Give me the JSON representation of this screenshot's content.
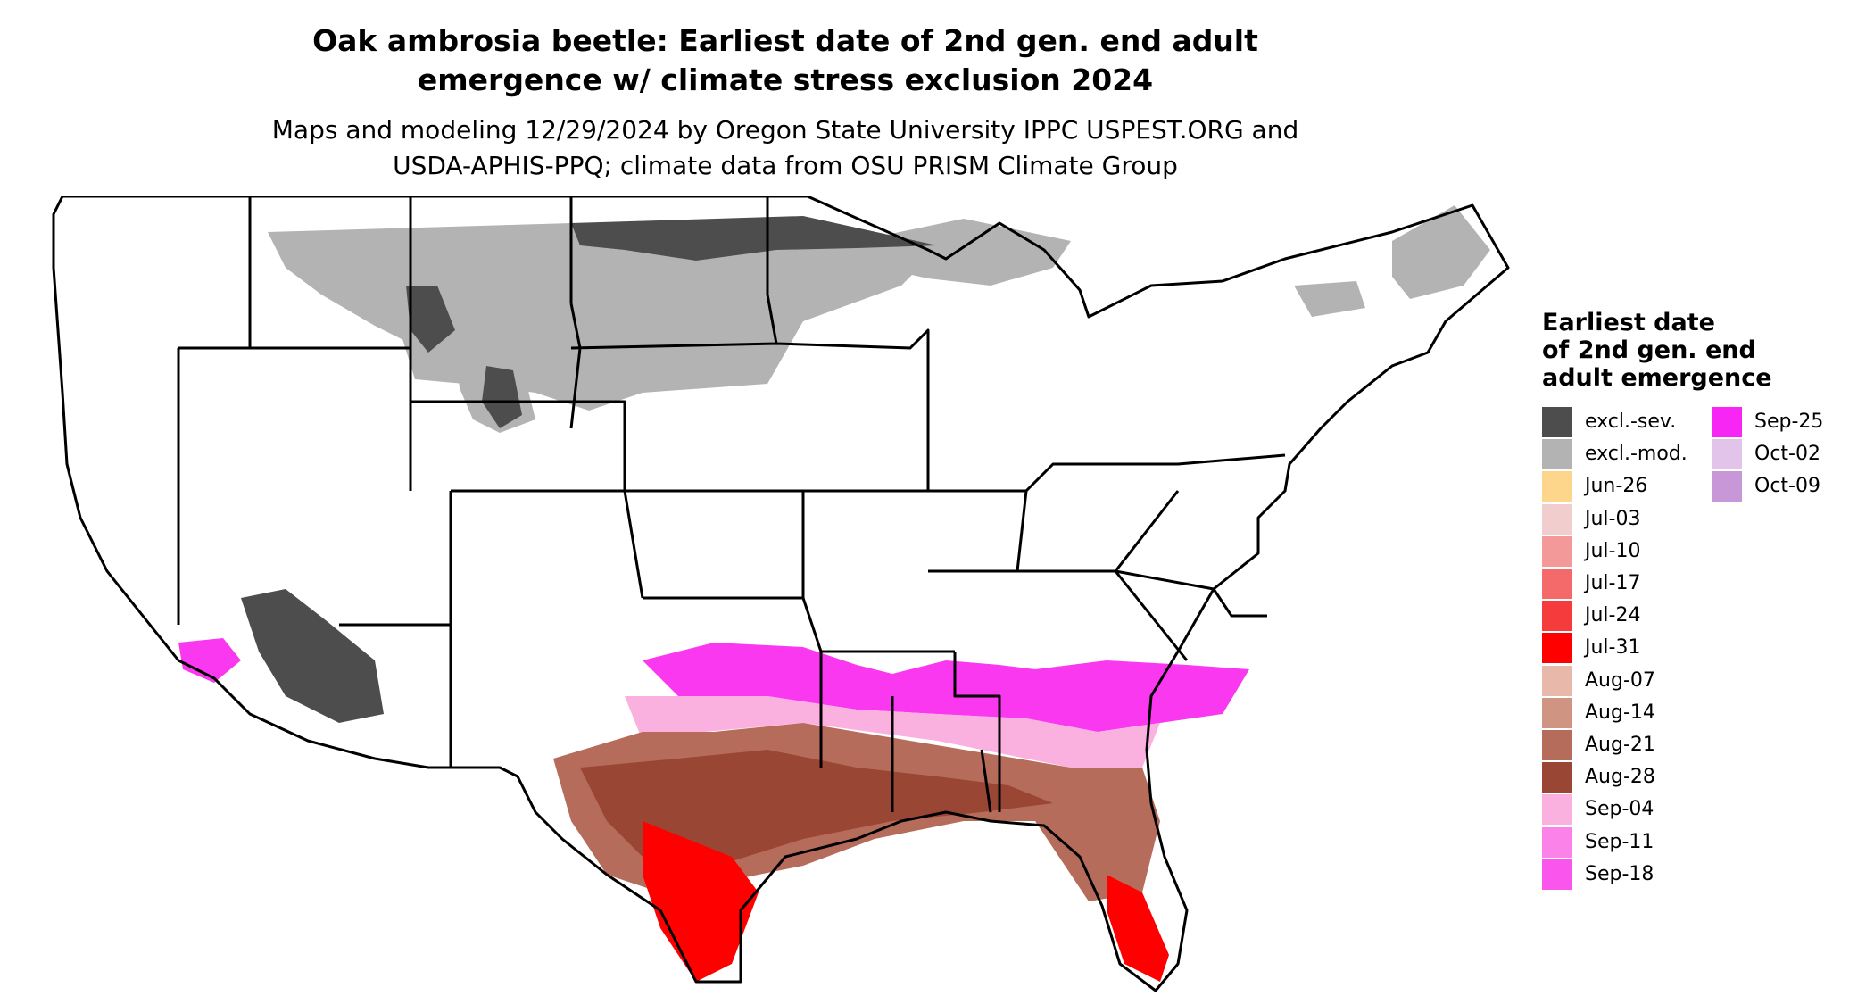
{
  "title": {
    "line1": "Oak ambrosia beetle: Earliest date of 2nd gen. end adult",
    "line2": "emergence w/ climate stress exclusion 2024"
  },
  "subtitle": {
    "line1": "Maps and modeling 12/29/2024 by Oregon State University IPPC USPEST.ORG and",
    "line2": "USDA-APHIS-PPQ; climate data from OSU PRISM Climate Group"
  },
  "legend": {
    "title_lines": [
      "Earliest date",
      "of 2nd gen. end",
      "adult emergence"
    ],
    "items": [
      {
        "label": "excl.-sev.",
        "color": "#4d4d4d"
      },
      {
        "label": "excl.-mod.",
        "color": "#b3b3b3"
      },
      {
        "label": "Jun-26",
        "color": "#fdd68b"
      },
      {
        "label": "Jul-03",
        "color": "#f2cdcd"
      },
      {
        "label": "Jul-10",
        "color": "#f39999"
      },
      {
        "label": "Jul-17",
        "color": "#f46a6a"
      },
      {
        "label": "Jul-24",
        "color": "#f53b3b"
      },
      {
        "label": "Jul-31",
        "color": "#ff0000"
      },
      {
        "label": "Aug-07",
        "color": "#e8b9aa"
      },
      {
        "label": "Aug-14",
        "color": "#d09483"
      },
      {
        "label": "Aug-21",
        "color": "#b66c5b"
      },
      {
        "label": "Aug-28",
        "color": "#9a4634"
      },
      {
        "label": "Sep-04",
        "color": "#fbb1df"
      },
      {
        "label": "Sep-11",
        "color": "#fb82e8"
      },
      {
        "label": "Sep-18",
        "color": "#fa55ec"
      },
      {
        "label": "Sep-25",
        "color": "#f826f5"
      },
      {
        "label": "Oct-02",
        "color": "#e2c3ea"
      },
      {
        "label": "Oct-09",
        "color": "#c897d8"
      }
    ]
  },
  "map": {
    "zone_colors": {
      "excl_severe": "#4d4d4d",
      "excl_moderate": "#b3b3b3",
      "late_pink": "#fb82e8",
      "magenta": "#f938f0",
      "light_pink": "#fbb1df",
      "brown_light": "#d09483",
      "brown": "#b66c5b",
      "brown_dark": "#9a4634",
      "salmon": "#e8b9aa",
      "red": "#ff0000",
      "red_soft": "#f46a6a"
    },
    "boundary_color": "#000000"
  }
}
